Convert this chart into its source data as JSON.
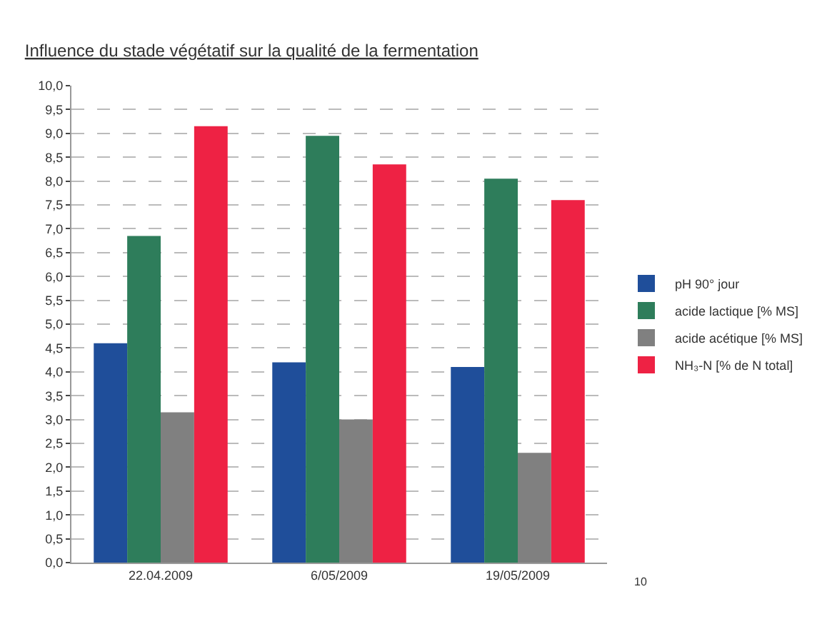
{
  "chart_data": {
    "type": "bar",
    "title": "Influence du stade végétatif sur la qualité de la fermentation",
    "categories": [
      "22.04.2009",
      "6/05/2009",
      "19/05/2009"
    ],
    "series": [
      {
        "name": "pH 90° jour",
        "color": "#1f4e9a",
        "values": [
          4.6,
          4.2,
          4.1
        ]
      },
      {
        "name": "acide lactique [% MS]",
        "color": "#2e7d5b",
        "values": [
          6.85,
          8.95,
          8.05
        ]
      },
      {
        "name": "acide acétique [% MS]",
        "color": "#808080",
        "values": [
          3.15,
          3.0,
          2.3
        ]
      },
      {
        "name": "NH₃-N [% de N total]",
        "color": "#ee2244",
        "values": [
          9.15,
          8.35,
          7.6
        ]
      }
    ],
    "ylim": [
      0,
      10
    ],
    "yticks": [
      {
        "value": 0,
        "label": "0,0"
      },
      {
        "value": 0.5,
        "label": "0,5"
      },
      {
        "value": 1,
        "label": "1,0"
      },
      {
        "value": 1.5,
        "label": "1,5"
      },
      {
        "value": 2,
        "label": "2,0"
      },
      {
        "value": 2.5,
        "label": "2,5"
      },
      {
        "value": 3,
        "label": "3,0"
      },
      {
        "value": 3.5,
        "label": "3,5"
      },
      {
        "value": 4,
        "label": "4,0"
      },
      {
        "value": 4.5,
        "label": "4,5"
      },
      {
        "value": 5,
        "label": "5,0"
      },
      {
        "value": 5.5,
        "label": "5,5"
      },
      {
        "value": 6,
        "label": "6,0"
      },
      {
        "value": 6.5,
        "label": "6,5"
      },
      {
        "value": 7,
        "label": "7,0"
      },
      {
        "value": 7.5,
        "label": "7,5"
      },
      {
        "value": 8,
        "label": "8,0"
      },
      {
        "value": 8.5,
        "label": "8,5"
      },
      {
        "value": 9,
        "label": "9,0"
      },
      {
        "value": 9.5,
        "label": "9,5"
      },
      {
        "value": 10,
        "label": "10,0"
      }
    ],
    "grid": "y",
    "legend": "right",
    "annotations": [
      "10"
    ]
  }
}
